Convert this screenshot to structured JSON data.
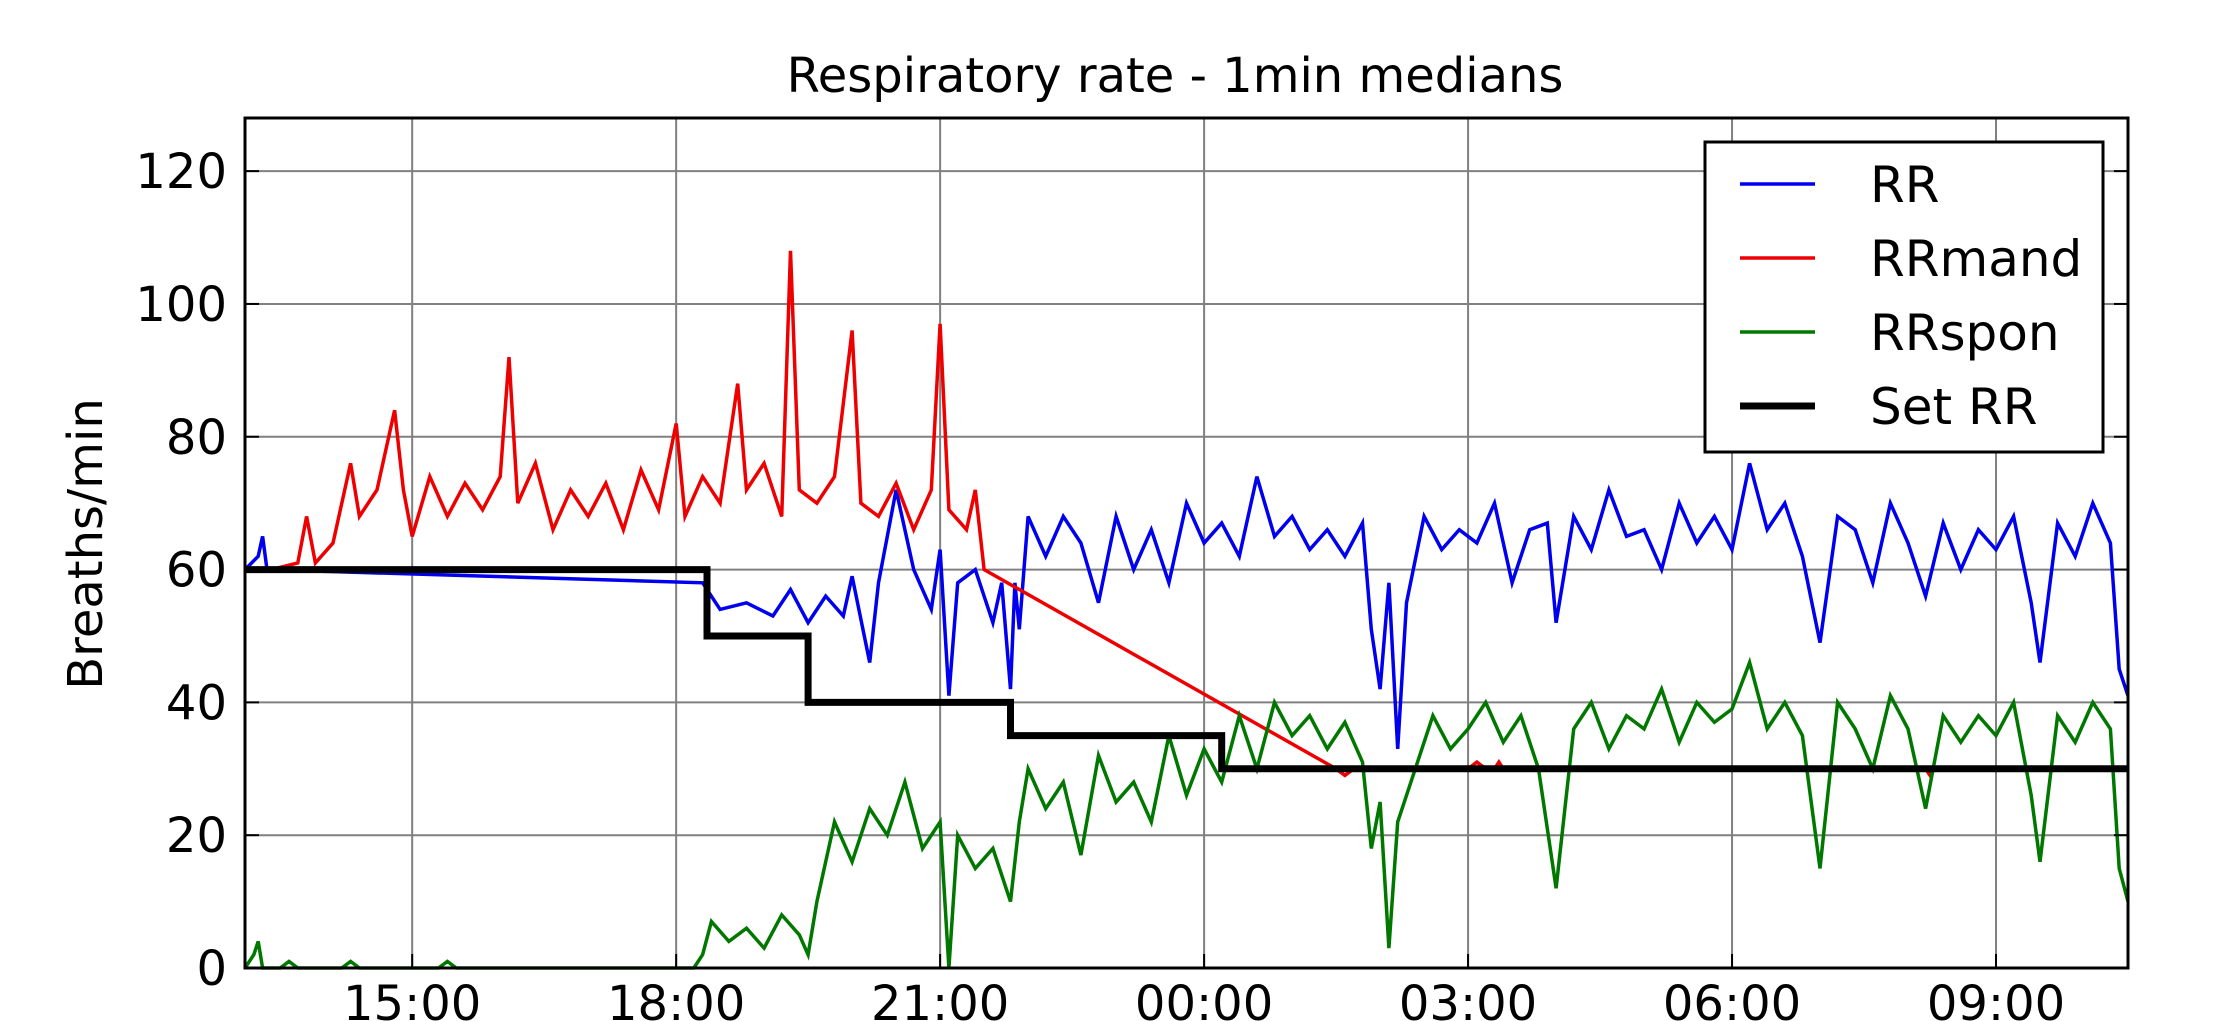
{
  "chart_data": {
    "type": "line",
    "title": "Respiratory rate -  1min medians",
    "xlabel": "",
    "ylabel": "Breaths/min",
    "x_unit": "hours",
    "xlim": [
      13.1,
      34.5
    ],
    "ylim": [
      0,
      128
    ],
    "grid": true,
    "legend_position": "top-right",
    "x_ticks": [
      {
        "value": 15,
        "label": "15:00"
      },
      {
        "value": 18,
        "label": "18:00"
      },
      {
        "value": 21,
        "label": "21:00"
      },
      {
        "value": 24,
        "label": "00:00"
      },
      {
        "value": 27,
        "label": "03:00"
      },
      {
        "value": 30,
        "label": "06:00"
      },
      {
        "value": 33,
        "label": "09:00"
      }
    ],
    "y_ticks": [
      {
        "value": 0,
        "label": "0"
      },
      {
        "value": 20,
        "label": "20"
      },
      {
        "value": 40,
        "label": "40"
      },
      {
        "value": 60,
        "label": "60"
      },
      {
        "value": 80,
        "label": "80"
      },
      {
        "value": 100,
        "label": "100"
      },
      {
        "value": 120,
        "label": "120"
      }
    ],
    "series": [
      {
        "name": "RR",
        "color": "#0000ee",
        "points": [
          [
            13.1,
            60
          ],
          [
            13.25,
            62
          ],
          [
            13.3,
            65
          ],
          [
            13.35,
            60
          ],
          [
            18.3,
            58
          ],
          [
            18.5,
            54
          ],
          [
            18.8,
            55
          ],
          [
            19.1,
            53
          ],
          [
            19.3,
            57
          ],
          [
            19.5,
            52
          ],
          [
            19.7,
            56
          ],
          [
            19.9,
            53
          ],
          [
            20.0,
            59
          ],
          [
            20.2,
            46
          ],
          [
            20.3,
            58
          ],
          [
            20.5,
            72
          ],
          [
            20.7,
            60
          ],
          [
            20.9,
            54
          ],
          [
            21.0,
            63
          ],
          [
            21.1,
            41
          ],
          [
            21.2,
            58
          ],
          [
            21.4,
            60
          ],
          [
            21.6,
            52
          ],
          [
            21.7,
            58
          ],
          [
            21.8,
            42
          ],
          [
            21.85,
            58
          ],
          [
            21.9,
            51
          ],
          [
            22.0,
            68
          ],
          [
            22.2,
            62
          ],
          [
            22.4,
            68
          ],
          [
            22.6,
            64
          ],
          [
            22.8,
            55
          ],
          [
            23.0,
            68
          ],
          [
            23.2,
            60
          ],
          [
            23.4,
            66
          ],
          [
            23.6,
            58
          ],
          [
            23.8,
            70
          ],
          [
            24.0,
            64
          ],
          [
            24.2,
            67
          ],
          [
            24.4,
            62
          ],
          [
            24.6,
            74
          ],
          [
            24.8,
            65
          ],
          [
            25.0,
            68
          ],
          [
            25.2,
            63
          ],
          [
            25.4,
            66
          ],
          [
            25.6,
            62
          ],
          [
            25.8,
            67
          ],
          [
            25.9,
            51
          ],
          [
            26.0,
            42
          ],
          [
            26.1,
            58
          ],
          [
            26.2,
            33
          ],
          [
            26.3,
            55
          ],
          [
            26.5,
            68
          ],
          [
            26.7,
            63
          ],
          [
            26.9,
            66
          ],
          [
            27.1,
            64
          ],
          [
            27.3,
            70
          ],
          [
            27.5,
            58
          ],
          [
            27.7,
            66
          ],
          [
            27.9,
            67
          ],
          [
            28.0,
            52
          ],
          [
            28.2,
            68
          ],
          [
            28.4,
            63
          ],
          [
            28.6,
            72
          ],
          [
            28.8,
            65
          ],
          [
            29.0,
            66
          ],
          [
            29.2,
            60
          ],
          [
            29.4,
            70
          ],
          [
            29.6,
            64
          ],
          [
            29.8,
            68
          ],
          [
            30.0,
            63
          ],
          [
            30.2,
            76
          ],
          [
            30.4,
            66
          ],
          [
            30.6,
            70
          ],
          [
            30.8,
            62
          ],
          [
            31.0,
            49
          ],
          [
            31.2,
            68
          ],
          [
            31.4,
            66
          ],
          [
            31.6,
            58
          ],
          [
            31.8,
            70
          ],
          [
            32.0,
            64
          ],
          [
            32.2,
            56
          ],
          [
            32.4,
            67
          ],
          [
            32.6,
            60
          ],
          [
            32.8,
            66
          ],
          [
            33.0,
            63
          ],
          [
            33.2,
            68
          ],
          [
            33.4,
            55
          ],
          [
            33.5,
            46
          ],
          [
            33.7,
            67
          ],
          [
            33.9,
            62
          ],
          [
            34.1,
            70
          ],
          [
            34.3,
            64
          ],
          [
            34.4,
            45
          ],
          [
            34.5,
            41
          ]
        ]
      },
      {
        "name": "RRmand",
        "color": "#ee0000",
        "points": [
          [
            13.1,
            60
          ],
          [
            13.4,
            60
          ],
          [
            13.7,
            61
          ],
          [
            13.8,
            68
          ],
          [
            13.9,
            61
          ],
          [
            14.1,
            64
          ],
          [
            14.3,
            76
          ],
          [
            14.4,
            68
          ],
          [
            14.6,
            72
          ],
          [
            14.8,
            84
          ],
          [
            14.9,
            72
          ],
          [
            15.0,
            65
          ],
          [
            15.2,
            74
          ],
          [
            15.4,
            68
          ],
          [
            15.6,
            73
          ],
          [
            15.8,
            69
          ],
          [
            16.0,
            74
          ],
          [
            16.1,
            92
          ],
          [
            16.2,
            70
          ],
          [
            16.4,
            76
          ],
          [
            16.6,
            66
          ],
          [
            16.8,
            72
          ],
          [
            17.0,
            68
          ],
          [
            17.2,
            73
          ],
          [
            17.4,
            66
          ],
          [
            17.6,
            75
          ],
          [
            17.8,
            69
          ],
          [
            18.0,
            82
          ],
          [
            18.1,
            68
          ],
          [
            18.3,
            74
          ],
          [
            18.5,
            70
          ],
          [
            18.7,
            88
          ],
          [
            18.8,
            72
          ],
          [
            19.0,
            76
          ],
          [
            19.2,
            68
          ],
          [
            19.3,
            108
          ],
          [
            19.4,
            72
          ],
          [
            19.6,
            70
          ],
          [
            19.8,
            74
          ],
          [
            20.0,
            96
          ],
          [
            20.1,
            70
          ],
          [
            20.3,
            68
          ],
          [
            20.5,
            73
          ],
          [
            20.7,
            66
          ],
          [
            20.9,
            72
          ],
          [
            21.0,
            97
          ],
          [
            21.1,
            69
          ],
          [
            21.3,
            66
          ],
          [
            21.4,
            72
          ],
          [
            21.5,
            60
          ],
          [
            25.5,
            30
          ],
          [
            25.6,
            29
          ],
          [
            25.7,
            30
          ],
          [
            27.0,
            30
          ],
          [
            27.1,
            31
          ],
          [
            27.2,
            30
          ],
          [
            27.3,
            30
          ],
          [
            27.35,
            31
          ],
          [
            27.4,
            30
          ],
          [
            32.2,
            30
          ],
          [
            32.25,
            29
          ],
          [
            32.3,
            30
          ]
        ]
      },
      {
        "name": "RRspon",
        "color": "#007800",
        "points": [
          [
            13.1,
            0
          ],
          [
            13.2,
            2
          ],
          [
            13.25,
            4
          ],
          [
            13.3,
            0
          ],
          [
            13.5,
            0
          ],
          [
            13.6,
            1
          ],
          [
            13.7,
            0
          ],
          [
            14.2,
            0
          ],
          [
            14.3,
            1
          ],
          [
            14.4,
            0
          ],
          [
            15.3,
            0
          ],
          [
            15.4,
            1
          ],
          [
            15.5,
            0
          ],
          [
            18.2,
            0
          ],
          [
            18.3,
            2
          ],
          [
            18.4,
            7
          ],
          [
            18.6,
            4
          ],
          [
            18.8,
            6
          ],
          [
            19.0,
            3
          ],
          [
            19.2,
            8
          ],
          [
            19.4,
            5
          ],
          [
            19.5,
            2
          ],
          [
            19.6,
            10
          ],
          [
            19.8,
            22
          ],
          [
            20.0,
            16
          ],
          [
            20.2,
            24
          ],
          [
            20.4,
            20
          ],
          [
            20.6,
            28
          ],
          [
            20.8,
            18
          ],
          [
            21.0,
            22
          ],
          [
            21.1,
            0
          ],
          [
            21.2,
            20
          ],
          [
            21.4,
            15
          ],
          [
            21.6,
            18
          ],
          [
            21.8,
            10
          ],
          [
            21.9,
            22
          ],
          [
            22.0,
            30
          ],
          [
            22.2,
            24
          ],
          [
            22.4,
            28
          ],
          [
            22.6,
            17
          ],
          [
            22.8,
            32
          ],
          [
            23.0,
            25
          ],
          [
            23.2,
            28
          ],
          [
            23.4,
            22
          ],
          [
            23.6,
            35
          ],
          [
            23.8,
            26
          ],
          [
            24.0,
            33
          ],
          [
            24.2,
            28
          ],
          [
            24.4,
            38
          ],
          [
            24.6,
            30
          ],
          [
            24.8,
            40
          ],
          [
            25.0,
            35
          ],
          [
            25.2,
            38
          ],
          [
            25.4,
            33
          ],
          [
            25.6,
            37
          ],
          [
            25.8,
            31
          ],
          [
            25.9,
            18
          ],
          [
            26.0,
            25
          ],
          [
            26.1,
            3
          ],
          [
            26.2,
            22
          ],
          [
            26.4,
            30
          ],
          [
            26.6,
            38
          ],
          [
            26.8,
            33
          ],
          [
            27.0,
            36
          ],
          [
            27.2,
            40
          ],
          [
            27.4,
            34
          ],
          [
            27.6,
            38
          ],
          [
            27.8,
            30
          ],
          [
            28.0,
            12
          ],
          [
            28.2,
            36
          ],
          [
            28.4,
            40
          ],
          [
            28.6,
            33
          ],
          [
            28.8,
            38
          ],
          [
            29.0,
            36
          ],
          [
            29.2,
            42
          ],
          [
            29.4,
            34
          ],
          [
            29.6,
            40
          ],
          [
            29.8,
            37
          ],
          [
            30.0,
            39
          ],
          [
            30.2,
            46
          ],
          [
            30.4,
            36
          ],
          [
            30.6,
            40
          ],
          [
            30.8,
            35
          ],
          [
            31.0,
            15
          ],
          [
            31.2,
            40
          ],
          [
            31.4,
            36
          ],
          [
            31.6,
            30
          ],
          [
            31.8,
            41
          ],
          [
            32.0,
            36
          ],
          [
            32.2,
            24
          ],
          [
            32.4,
            38
          ],
          [
            32.6,
            34
          ],
          [
            32.8,
            38
          ],
          [
            33.0,
            35
          ],
          [
            33.2,
            40
          ],
          [
            33.4,
            26
          ],
          [
            33.5,
            16
          ],
          [
            33.7,
            38
          ],
          [
            33.9,
            34
          ],
          [
            34.1,
            40
          ],
          [
            34.3,
            36
          ],
          [
            34.4,
            15
          ],
          [
            34.5,
            10
          ]
        ]
      },
      {
        "name": "Set RR",
        "color": "#000000",
        "step": true,
        "points": [
          [
            13.1,
            60
          ],
          [
            18.35,
            60
          ],
          [
            18.35,
            50
          ],
          [
            19.5,
            50
          ],
          [
            19.5,
            40
          ],
          [
            21.8,
            40
          ],
          [
            21.8,
            35
          ],
          [
            24.2,
            35
          ],
          [
            24.2,
            30
          ],
          [
            34.5,
            30
          ]
        ]
      }
    ]
  }
}
